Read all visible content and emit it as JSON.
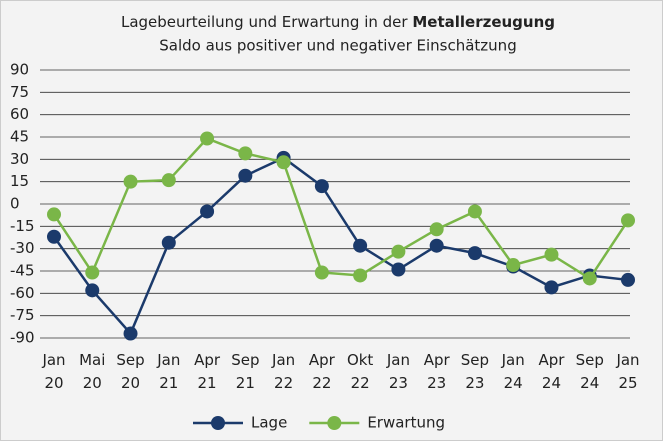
{
  "chart_data": {
    "type": "line",
    "title": "Lagebeurteilung und Erwartung in der",
    "title_emphasis": "Metallerzeugung",
    "subtitle": "Saldo aus positiver und negativer Einschätzung",
    "categories": [
      "Jan 20",
      "Mai 20",
      "Sep 20",
      "Jan 21",
      "Apr 21",
      "Sep 21",
      "Jan 22",
      "Apr 22",
      "Okt 22",
      "Jan 23",
      "Apr 23",
      "Sep 23",
      "Jan 24",
      "Apr 24",
      "Sep 24",
      "Jan 25"
    ],
    "series": [
      {
        "name": "Lage",
        "color": "#1b3a6b",
        "values": [
          -22,
          -58,
          -87,
          -26,
          -5,
          19,
          31,
          12,
          -28,
          -44,
          -28,
          -33,
          -42,
          -56,
          -48,
          -51
        ]
      },
      {
        "name": "Erwartung",
        "color": "#7ab648",
        "values": [
          -7,
          -46,
          15,
          16,
          44,
          34,
          28,
          -46,
          -48,
          -32,
          -17,
          -5,
          -41,
          -34,
          -50,
          -11
        ]
      }
    ],
    "ylim": [
      -90,
      90
    ],
    "yticks": [
      90,
      75,
      60,
      45,
      30,
      15,
      0,
      -15,
      -30,
      -45,
      -60,
      -75,
      -90
    ],
    "grid": true,
    "legend": "bottom"
  }
}
